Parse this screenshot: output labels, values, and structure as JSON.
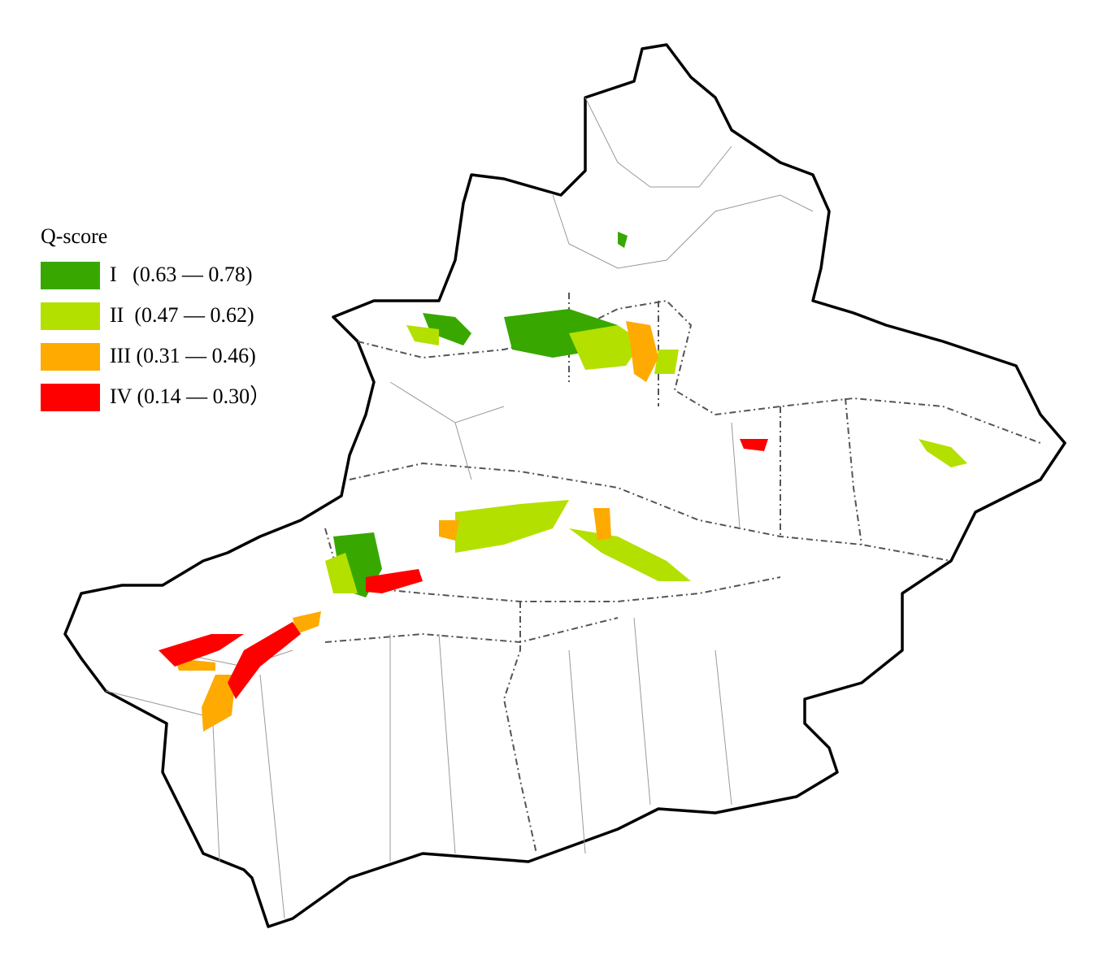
{
  "legend": {
    "title": "Q-score",
    "items": [
      {
        "label": "I   (0.63 — 0.78)",
        "color": "#38a800"
      },
      {
        "label": "II  (0.47 — 0.62)",
        "color": "#b4e000"
      },
      {
        "label": "III (0.31 — 0.46)",
        "color": "#ffaa00"
      },
      {
        "label": "IV (0.14 — 0.30）",
        "color": "#ff0000"
      }
    ]
  }
}
